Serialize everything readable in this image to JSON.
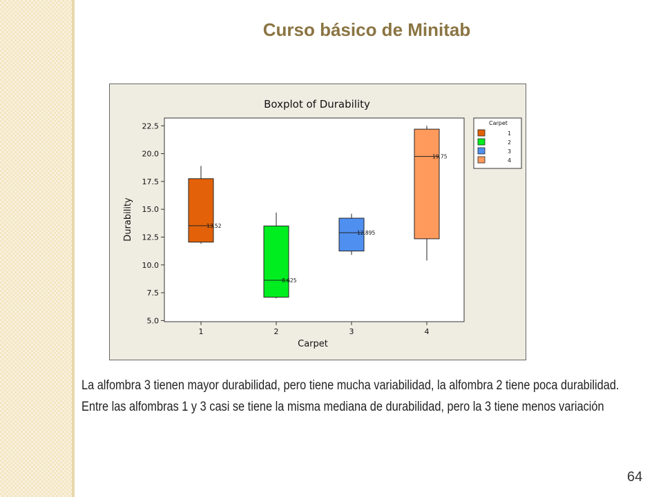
{
  "slide": {
    "title": "Curso básico de Minitab",
    "caption_lines": [
      "La alfombra 3 tienen mayor durabilidad, pero tiene mucha variabilidad, la alfombra 2 tiene poca durabilidad.",
      "Entre las alfombras 1 y 3 casi se tiene la misma mediana de durabilidad, pero la 3 tiene menos variación"
    ],
    "page_number": "64"
  },
  "colors": {
    "accent_title": "#8a7442",
    "chart_background": "#efece2",
    "plot_background": "#ffffff"
  },
  "chart_data": {
    "type": "boxplot",
    "title": "Boxplot of Durability",
    "xlabel": "Carpet",
    "ylabel": "Durability",
    "categories": [
      "1",
      "2",
      "3",
      "4"
    ],
    "yticks": [
      "5.0",
      "7.5",
      "10.0",
      "12.5",
      "15.0",
      "17.5",
      "20.0",
      "22.5"
    ],
    "ylim": [
      4.9,
      23.2
    ],
    "legend": {
      "title": "Carpet",
      "position": "top-right",
      "entries": [
        "1",
        "2",
        "3",
        "4"
      ]
    },
    "boxes": [
      {
        "category": "1",
        "whisker_low": 11.9,
        "q1": 12.05,
        "median": 13.52,
        "median_label": "13.52",
        "q3": 17.75,
        "whisker_high": 18.9,
        "color": "#e36209"
      },
      {
        "category": "2",
        "whisker_low": 7.0,
        "q1": 7.1,
        "median": 8.625,
        "median_label": "8.625",
        "q3": 13.5,
        "whisker_high": 14.7,
        "color": "#00ee1f"
      },
      {
        "category": "3",
        "whisker_low": 10.9,
        "q1": 11.25,
        "median": 12.895,
        "median_label": "12.895",
        "q3": 14.2,
        "whisker_high": 14.6,
        "color": "#4f8ff0"
      },
      {
        "category": "4",
        "whisker_low": 10.4,
        "q1": 12.35,
        "median": 19.75,
        "median_label": "19.75",
        "q3": 22.2,
        "whisker_high": 22.5,
        "color": "#ff9a5c"
      }
    ]
  }
}
